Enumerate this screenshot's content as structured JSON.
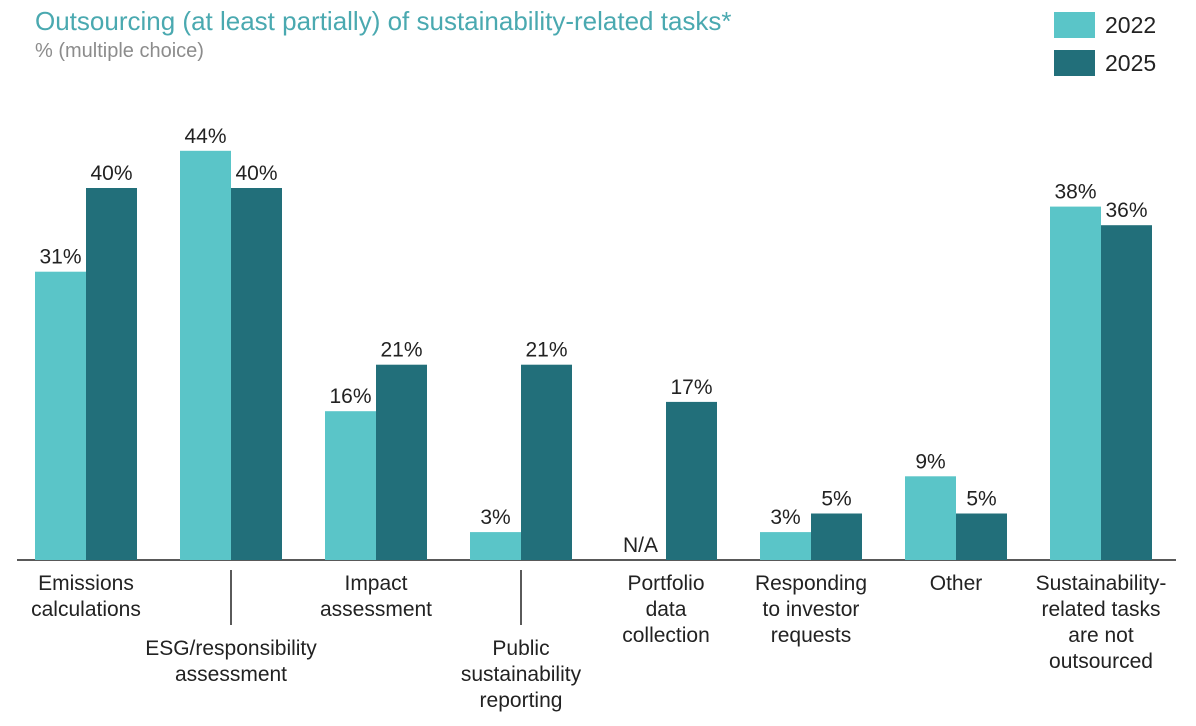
{
  "title": "Outsourcing (at least partially) of sustainability-related tasks*",
  "subtitle": "% (multiple choice)",
  "colors": {
    "s2022": "#5ac5c8",
    "s2025": "#226f7a"
  },
  "chart_data": {
    "type": "bar",
    "title": "Outsourcing (at least partially) of sustainability-related tasks*",
    "subtitle": "% (multiple choice)",
    "categories": [
      [
        "Emissions",
        "calculations"
      ],
      [
        "ESG/responsibility",
        "assessment"
      ],
      [
        "Impact",
        "assessment"
      ],
      [
        "Public",
        "sustainability",
        "reporting"
      ],
      [
        "Portfolio",
        "data",
        "collection"
      ],
      [
        "Responding",
        "to investor",
        "requests"
      ],
      [
        "Other"
      ],
      [
        "Sustainability-",
        "related tasks",
        "are not",
        "outsourced"
      ]
    ],
    "series": [
      {
        "name": "2022",
        "values": [
          31,
          44,
          16,
          3,
          null,
          3,
          9,
          38
        ],
        "labels": [
          "31%",
          "44%",
          "16%",
          "3%",
          "N/A",
          "3%",
          "9%",
          "38%"
        ]
      },
      {
        "name": "2025",
        "values": [
          40,
          40,
          21,
          21,
          17,
          5,
          5,
          36
        ],
        "labels": [
          "40%",
          "40%",
          "21%",
          "21%",
          "17%",
          "5%",
          "5%",
          "36%"
        ]
      }
    ],
    "ylim": [
      0,
      50
    ],
    "legend": "top-right"
  }
}
